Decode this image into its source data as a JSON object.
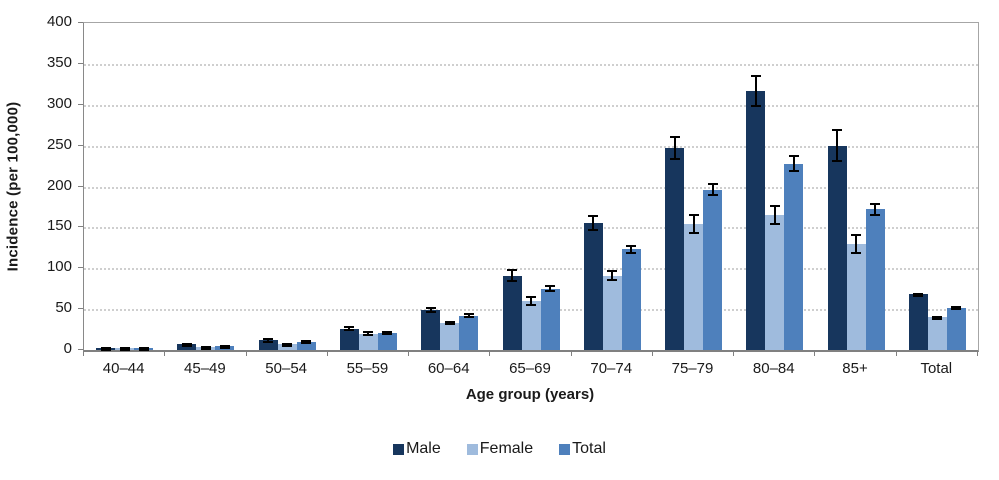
{
  "chart_data": {
    "type": "bar",
    "title": "",
    "xlabel": "Age group (years)",
    "ylabel": "Incidence (per 100,000)",
    "ylim": [
      0,
      400
    ],
    "yticks": [
      0,
      50,
      100,
      150,
      200,
      250,
      300,
      350,
      400
    ],
    "grid": "horizontal-dotted",
    "legend_position": "bottom-center",
    "error_bars": true,
    "error_bar_color": "#000000",
    "categories": [
      "40–44",
      "45–49",
      "50–54",
      "55–59",
      "60–64",
      "65–69",
      "70–74",
      "75–79",
      "80–84",
      "85+",
      "Total"
    ],
    "series": [
      {
        "name": "Male",
        "color": "#17365D",
        "values": [
          3,
          7,
          12,
          26,
          49,
          91,
          155,
          247,
          317,
          250,
          68
        ],
        "errors": [
          1,
          2,
          3,
          3,
          4,
          8,
          10,
          15,
          20,
          20,
          2
        ]
      },
      {
        "name": "Female",
        "color": "#9FBBDD",
        "values": [
          3,
          4,
          7,
          20,
          33,
          60,
          91,
          154,
          165,
          130,
          40
        ],
        "errors": [
          1,
          1,
          2,
          3,
          3,
          6,
          7,
          12,
          12,
          12,
          2
        ]
      },
      {
        "name": "Total",
        "color": "#4E80BC",
        "values": [
          3,
          5,
          10,
          21,
          42,
          75,
          123,
          196,
          228,
          172,
          52
        ],
        "errors": [
          1,
          1,
          2,
          2,
          3,
          4,
          5,
          8,
          10,
          8,
          2
        ]
      }
    ]
  }
}
